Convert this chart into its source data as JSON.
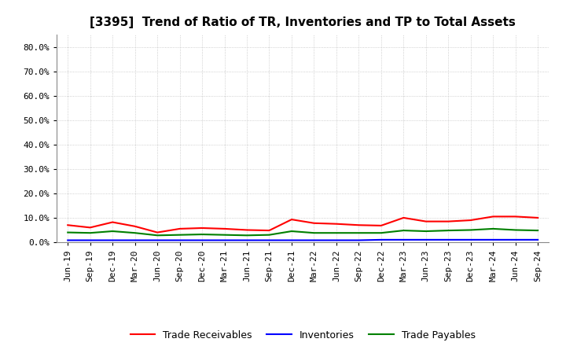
{
  "title": "[3395]  Trend of Ratio of TR, Inventories and TP to Total Assets",
  "background_color": "#ffffff",
  "plot_background": "#ffffff",
  "grid_color": "#aaaaaa",
  "x_labels": [
    "Jun-19",
    "Sep-19",
    "Dec-19",
    "Mar-20",
    "Jun-20",
    "Sep-20",
    "Dec-20",
    "Mar-21",
    "Jun-21",
    "Sep-21",
    "Dec-21",
    "Mar-22",
    "Jun-22",
    "Sep-22",
    "Dec-22",
    "Mar-23",
    "Jun-23",
    "Sep-23",
    "Dec-23",
    "Mar-24",
    "Jun-24",
    "Sep-24"
  ],
  "trade_receivables": [
    0.07,
    0.06,
    0.082,
    0.065,
    0.04,
    0.055,
    0.058,
    0.055,
    0.05,
    0.048,
    0.093,
    0.078,
    0.075,
    0.07,
    0.068,
    0.1,
    0.085,
    0.085,
    0.09,
    0.105,
    0.105,
    0.1
  ],
  "inventories": [
    0.008,
    0.008,
    0.008,
    0.008,
    0.008,
    0.008,
    0.008,
    0.008,
    0.008,
    0.008,
    0.008,
    0.008,
    0.008,
    0.008,
    0.01,
    0.01,
    0.01,
    0.01,
    0.01,
    0.01,
    0.01,
    0.01
  ],
  "trade_payables": [
    0.04,
    0.038,
    0.045,
    0.038,
    0.028,
    0.03,
    0.032,
    0.03,
    0.028,
    0.03,
    0.045,
    0.038,
    0.038,
    0.038,
    0.038,
    0.048,
    0.045,
    0.048,
    0.05,
    0.055,
    0.05,
    0.048
  ],
  "tr_color": "#ff0000",
  "inv_color": "#0000ff",
  "tp_color": "#008000",
  "tr_label": "Trade Receivables",
  "inv_label": "Inventories",
  "tp_label": "Trade Payables",
  "ylim": [
    0.0,
    0.85
  ],
  "yticks": [
    0.0,
    0.1,
    0.2,
    0.3,
    0.4,
    0.5,
    0.6,
    0.7,
    0.8
  ],
  "ytick_labels": [
    "0.0%",
    "10.0%",
    "20.0%",
    "30.0%",
    "40.0%",
    "50.0%",
    "60.0%",
    "70.0%",
    "80.0%"
  ],
  "title_fontsize": 11,
  "legend_fontsize": 9,
  "tick_fontsize": 8
}
